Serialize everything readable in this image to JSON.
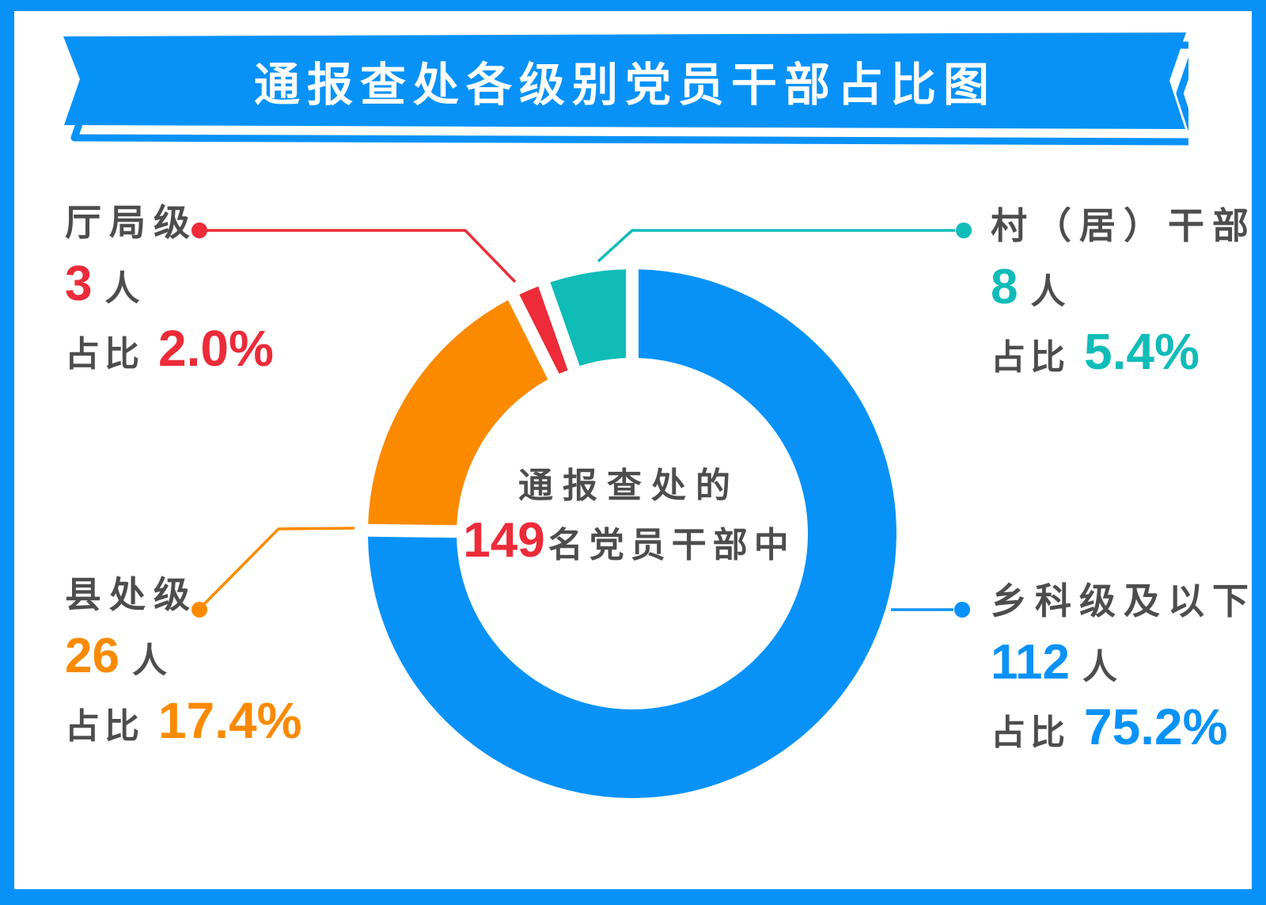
{
  "theme": {
    "blue": "#0892F8",
    "orange": "#FB8A00",
    "red": "#ED2B39",
    "teal": "#10BCB8",
    "gray": "#4D4D4D"
  },
  "banner": {
    "title": "通报查处各级别党员干部占比图"
  },
  "center": {
    "line1": "通报查处的",
    "number": "149",
    "line2_rest": "名党员干部中"
  },
  "chart_data": {
    "type": "pie",
    "donut": true,
    "title": "通报查处各级别党员干部占比图",
    "center_label": "通报查处的 149 名党员干部中",
    "total": 149,
    "start_angle_deg": 0,
    "direction": "clockwise",
    "segments": [
      {
        "key": "xiangkeji",
        "label": "乡科级及以下",
        "count": 112,
        "percent": 75.2,
        "color": "#0892F8"
      },
      {
        "key": "xianchuji",
        "label": "县处级",
        "count": 26,
        "percent": 17.4,
        "color": "#FB8A00"
      },
      {
        "key": "tingjuji",
        "label": "厅局级",
        "count": 3,
        "percent": 2.0,
        "color": "#ED2B39"
      },
      {
        "key": "cunjuganbu",
        "label": "村（居）干部",
        "count": 8,
        "percent": 5.4,
        "color": "#10BCB8"
      }
    ]
  },
  "callouts": {
    "tingju": {
      "name": "厅局级",
      "count": "3",
      "unit": "人",
      "prefix": "占比",
      "percent": "2.0%"
    },
    "cunju": {
      "name": "村（居）干部",
      "count": "8",
      "unit": "人",
      "prefix": "占比",
      "percent": "5.4%"
    },
    "xianchu": {
      "name": "县处级",
      "count": "26",
      "unit": "人",
      "prefix": "占比",
      "percent": "17.4%"
    },
    "xiangke": {
      "name": "乡科级及以下",
      "count": "112",
      "unit": "人",
      "prefix": "占比",
      "percent": "75.2%"
    }
  }
}
